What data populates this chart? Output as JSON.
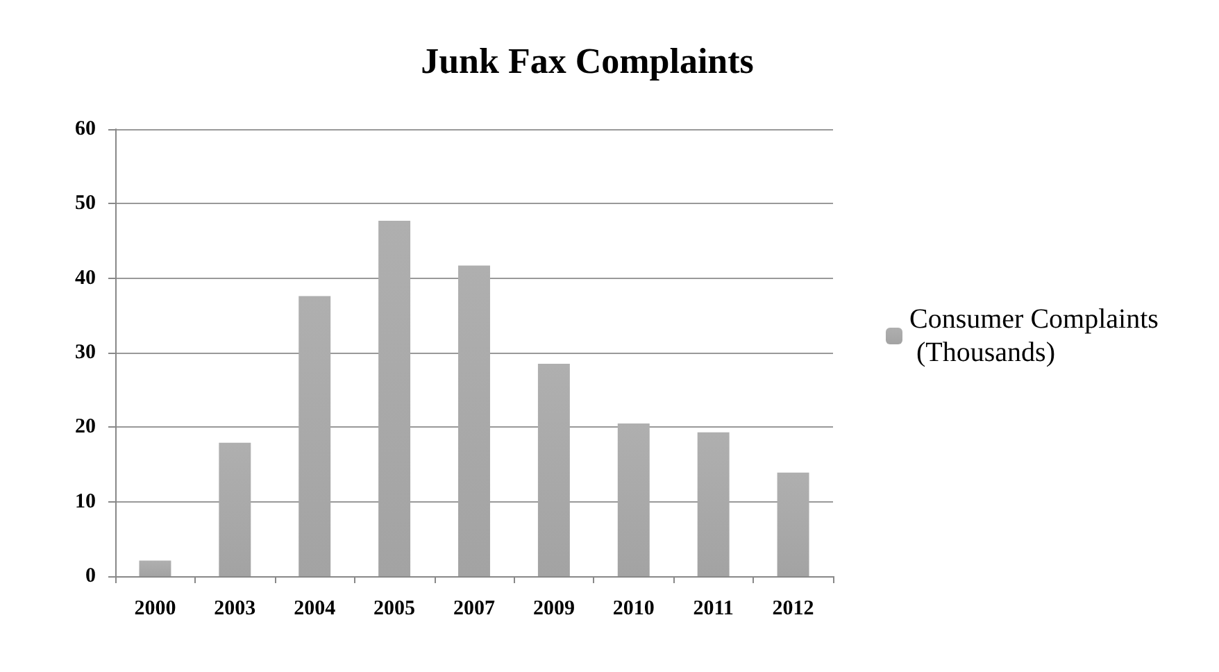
{
  "chart_data": {
    "type": "bar",
    "title": "Junk Fax Complaints",
    "categories": [
      "2000",
      "2003",
      "2004",
      "2005",
      "2007",
      "2009",
      "2010",
      "2011",
      "2012"
    ],
    "series": [
      {
        "name": "Consumer Complaints (Thousands)",
        "color": "#8c8c8c",
        "values": [
          2.1,
          17.9,
          37.6,
          47.7,
          41.7,
          28.5,
          20.5,
          19.3,
          13.9
        ]
      }
    ],
    "ylim": [
      0,
      60
    ],
    "yticks": [
      0,
      10,
      20,
      30,
      40,
      50,
      60
    ],
    "grid": "y",
    "legend": "right"
  }
}
